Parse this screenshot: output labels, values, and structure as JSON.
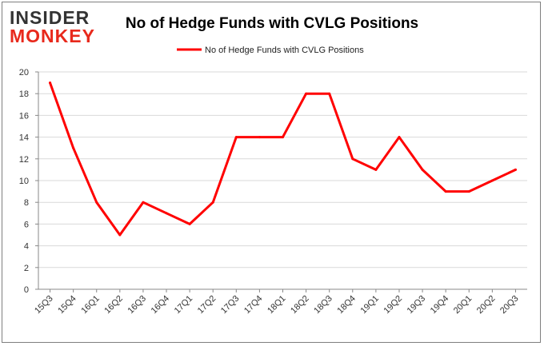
{
  "logo": {
    "line1": "INSIDER",
    "line2": "MONKEY"
  },
  "chart_data": {
    "type": "line",
    "title": "No of Hedge Funds with CVLG Positions",
    "xlabel": "",
    "ylabel": "",
    "ylim": [
      0,
      20
    ],
    "yticks": [
      0,
      2,
      4,
      6,
      8,
      10,
      12,
      14,
      16,
      18,
      20
    ],
    "grid": true,
    "legend_position": "top-center",
    "categories": [
      "15Q3",
      "15Q4",
      "16Q1",
      "16Q2",
      "16Q3",
      "16Q4",
      "17Q1",
      "17Q2",
      "17Q3",
      "17Q4",
      "18Q1",
      "18Q2",
      "18Q3",
      "18Q4",
      "19Q1",
      "19Q2",
      "19Q3",
      "19Q4",
      "20Q1",
      "20Q2",
      "20Q3"
    ],
    "series": [
      {
        "name": "No of Hedge Funds with CVLG Positions",
        "color": "#ff0000",
        "values": [
          19,
          13,
          8,
          5,
          8,
          7,
          6,
          8,
          14,
          14,
          14,
          18,
          18,
          12,
          11,
          14,
          11,
          9,
          9,
          10,
          11
        ]
      }
    ]
  }
}
